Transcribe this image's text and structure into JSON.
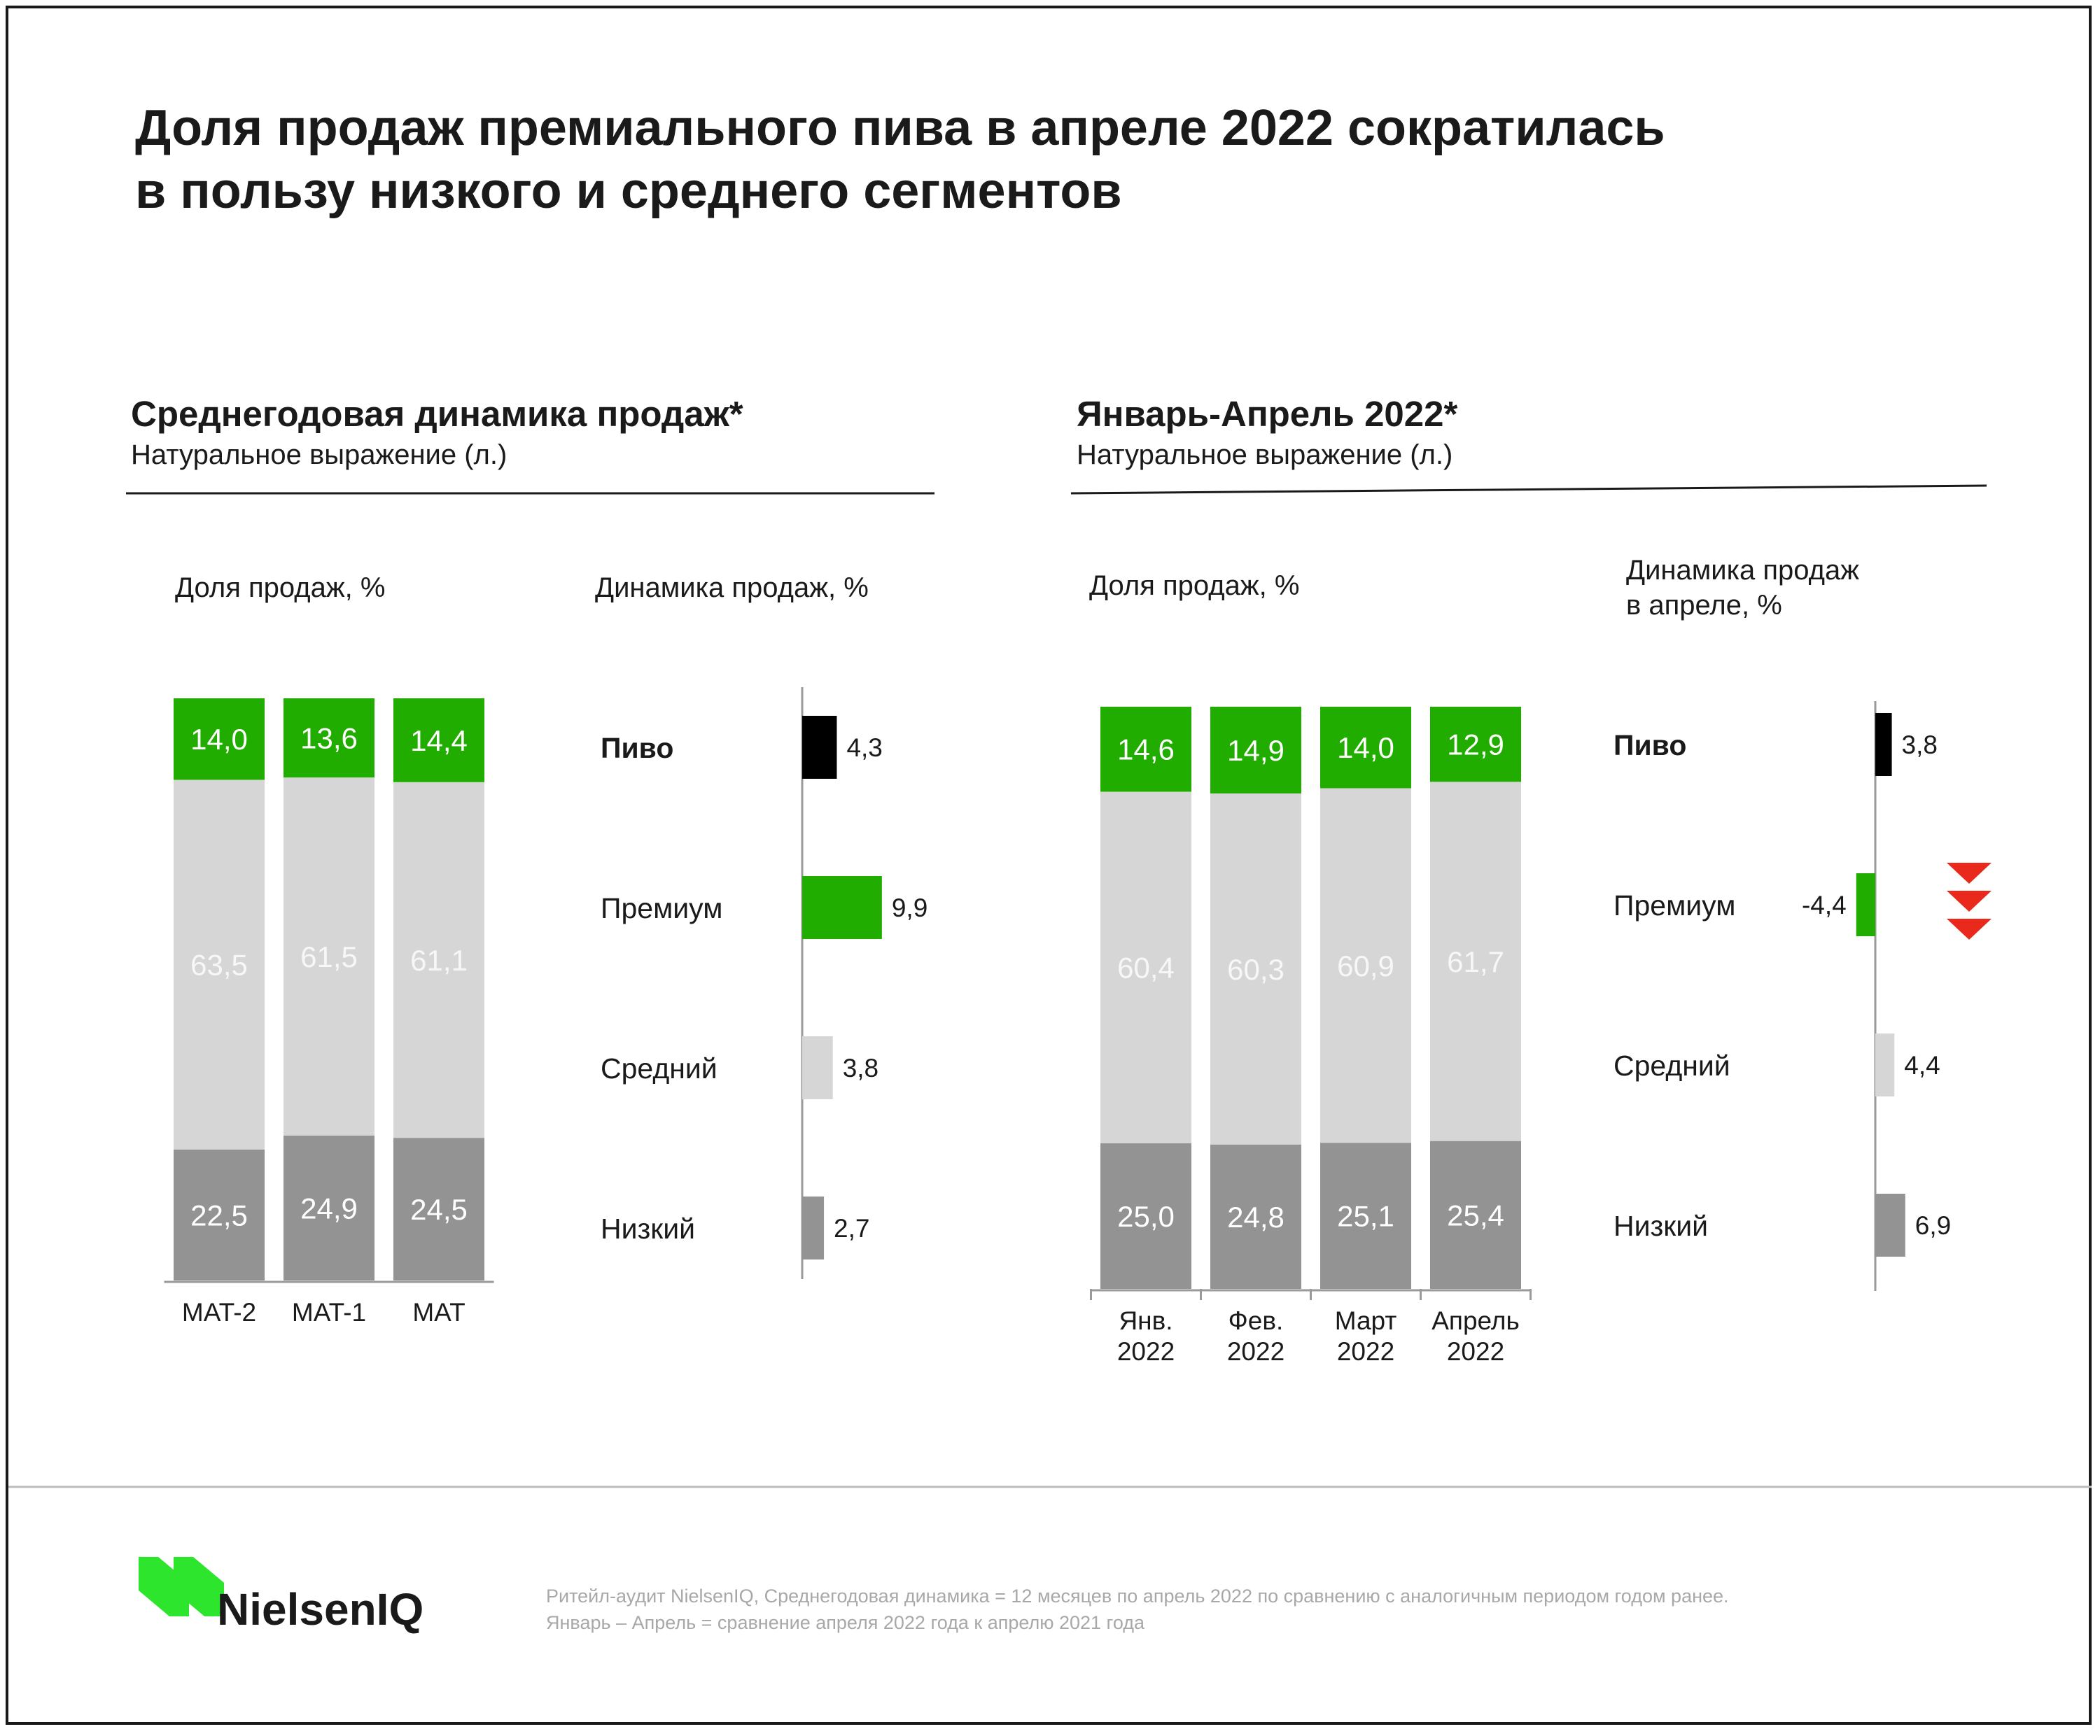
{
  "title": {
    "line1": "Доля продаж премиального пива в апреле 2022 сократилась",
    "line2": "в пользу низкого и среднего сегментов"
  },
  "left_section": {
    "title": "Среднегодовая динамика продаж*",
    "subtitle": "Натуральное выражение (л.)",
    "share_label": "Доля продаж, %",
    "growth_label": "Динамика продаж, %"
  },
  "right_section": {
    "title": "Январь-Апрель 2022*",
    "subtitle": "Натуральное выражение (л.)",
    "share_label": "Доля продаж, %",
    "growth_label_line1": "Динамика продаж",
    "growth_label_line2": "в апреле, %"
  },
  "colors": {
    "premium": "#21ad00",
    "middle": "#d6d6d6",
    "low": "#939393",
    "total": "#000000",
    "decline_arrow": "#e8291c",
    "text": "#1a1a1a",
    "footnote": "#a8a8a8"
  },
  "chart_data": [
    {
      "id": "left-share",
      "type": "bar",
      "stacked": true,
      "categories": [
        [
          "MAT-2"
        ],
        [
          "MAT-1"
        ],
        [
          "MAT"
        ]
      ],
      "series": [
        {
          "name": "Низкий",
          "color": "#939393",
          "values": [
            22.5,
            24.9,
            24.5
          ],
          "labels": [
            "22,5",
            "24,9",
            "24,5"
          ]
        },
        {
          "name": "Средний",
          "color": "#d6d6d6",
          "values": [
            63.5,
            61.5,
            61.1
          ],
          "labels": [
            "63,5",
            "61,5",
            "61,1"
          ]
        },
        {
          "name": "Премиум",
          "color": "#21ad00",
          "values": [
            14.0,
            13.6,
            14.4
          ],
          "labels": [
            "14,0",
            "13,6",
            "14,4"
          ]
        }
      ],
      "ylim": [
        0,
        100
      ]
    },
    {
      "id": "left-growth",
      "type": "bar",
      "orientation": "horizontal",
      "categories": [
        "Пиво",
        "Премиум",
        "Средний",
        "Низкий"
      ],
      "values": [
        4.3,
        9.9,
        3.8,
        2.7
      ],
      "labels": [
        "4,3",
        "9,9",
        "3,8",
        "2,7"
      ],
      "colors": [
        "#000000",
        "#21ad00",
        "#d6d6d6",
        "#939393"
      ],
      "bold_category": "Пиво"
    },
    {
      "id": "right-share",
      "type": "bar",
      "stacked": true,
      "categories": [
        [
          "Янв.",
          "2022"
        ],
        [
          "Фев.",
          "2022"
        ],
        [
          "Март",
          "2022"
        ],
        [
          "Апрель",
          "2022"
        ]
      ],
      "series": [
        {
          "name": "Низкий",
          "color": "#939393",
          "values": [
            25.0,
            24.8,
            25.1,
            25.4
          ],
          "labels": [
            "25,0",
            "24,8",
            "25,1",
            "25,4"
          ]
        },
        {
          "name": "Средний",
          "color": "#d6d6d6",
          "values": [
            60.4,
            60.3,
            60.9,
            61.7
          ],
          "labels": [
            "60,4",
            "60,3",
            "60,9",
            "61,7"
          ]
        },
        {
          "name": "Премиум",
          "color": "#21ad00",
          "values": [
            14.6,
            14.9,
            14.0,
            12.9
          ],
          "labels": [
            "14,6",
            "14,9",
            "14,0",
            "12,9"
          ]
        }
      ],
      "ylim": [
        0,
        100
      ]
    },
    {
      "id": "right-growth",
      "type": "bar",
      "orientation": "horizontal",
      "categories": [
        "Пиво",
        "Премиум",
        "Средний",
        "Низкий"
      ],
      "values": [
        3.8,
        -4.4,
        4.4,
        6.9
      ],
      "labels": [
        "3,8",
        "-4,4",
        "4,4",
        "6,9"
      ],
      "colors": [
        "#000000",
        "#21ad00",
        "#d6d6d6",
        "#939393"
      ],
      "bold_category": "Пиво",
      "decline_marker_on": "Премиум"
    }
  ],
  "footer": {
    "brand": "NielsenIQ",
    "note_line1": "Ритейл-аудит NielsenIQ, Среднегодовая динамика = 12 месяцев по апрель 2022 по сравнению с аналогичным периодом годом ранее.",
    "note_line2": "Январь – Апрель = сравнение апреля 2022 года к апрелю 2021 года"
  }
}
